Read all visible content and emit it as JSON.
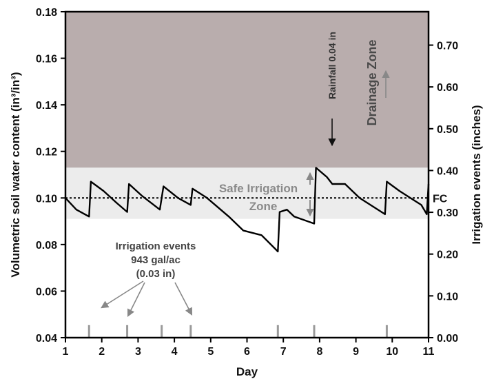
{
  "chart_data": {
    "type": "line",
    "xlabel": "Day",
    "ylabel_left": "Volumetric soil water content (in³/in³)",
    "ylabel_right": "Irrigation events (inches)",
    "xlim": [
      1,
      11
    ],
    "ylim_left": [
      0.04,
      0.18
    ],
    "ylim_right": [
      0.0,
      0.78
    ],
    "x_ticks": [
      "1",
      "2",
      "3",
      "4",
      "5",
      "6",
      "7",
      "8",
      "9",
      "10",
      "11"
    ],
    "y_left_ticks": [
      "0.04",
      "0.06",
      "0.08",
      "0.10",
      "0.12",
      "0.14",
      "0.16",
      "0.18"
    ],
    "y_right_ticks": [
      "0.00",
      "0.10",
      "0.20",
      "0.30",
      "0.40",
      "0.50",
      "0.60",
      "0.70"
    ],
    "zones": {
      "drainage": {
        "label": "Drainage Zone",
        "from": 0.113,
        "to": 0.18,
        "color": "#b9adad"
      },
      "safe_irrigation": {
        "label_line1": "Safe Irrigation",
        "label_line2": "Zone",
        "from": 0.091,
        "to": 0.113,
        "color": "#ececec"
      }
    },
    "field_capacity": {
      "label": "FC",
      "value": 0.1
    },
    "series": [
      {
        "values": [
          [
            1.0,
            0.1
          ],
          [
            1.3,
            0.095
          ],
          [
            1.65,
            0.092
          ],
          [
            1.7,
            0.107
          ],
          [
            2.05,
            0.103
          ],
          [
            2.4,
            0.098
          ],
          [
            2.7,
            0.094
          ],
          [
            2.75,
            0.106
          ],
          [
            3.1,
            0.101
          ],
          [
            3.6,
            0.095
          ],
          [
            3.7,
            0.105
          ],
          [
            4.1,
            0.1
          ],
          [
            4.45,
            0.097
          ],
          [
            4.5,
            0.104
          ],
          [
            4.9,
            0.1
          ],
          [
            5.5,
            0.092
          ],
          [
            5.9,
            0.086
          ],
          [
            6.4,
            0.084
          ],
          [
            6.85,
            0.077
          ],
          [
            6.9,
            0.094
          ],
          [
            7.1,
            0.095
          ],
          [
            7.3,
            0.092
          ],
          [
            7.85,
            0.089
          ],
          [
            7.9,
            0.113
          ],
          [
            8.2,
            0.109
          ],
          [
            8.35,
            0.106
          ],
          [
            8.7,
            0.106
          ],
          [
            9.1,
            0.1
          ],
          [
            9.8,
            0.093
          ],
          [
            9.85,
            0.107
          ],
          [
            10.2,
            0.103
          ],
          [
            10.5,
            0.1
          ],
          [
            10.8,
            0.097
          ],
          [
            10.95,
            0.093
          ],
          [
            11.0,
            0.106
          ]
        ]
      }
    ],
    "irrigation_events": [
      {
        "day": 1.65,
        "inches": 0.03
      },
      {
        "day": 2.7,
        "inches": 0.03
      },
      {
        "day": 3.65,
        "inches": 0.03
      },
      {
        "day": 4.45,
        "inches": 0.03
      },
      {
        "day": 6.85,
        "inches": 0.03
      },
      {
        "day": 7.85,
        "inches": 0.03
      },
      {
        "day": 9.85,
        "inches": 0.03
      }
    ],
    "annotations": {
      "irrigation_line1": "Irrigation events",
      "irrigation_line2": "943 gal/ac",
      "irrigation_line3": "(0.03 in)",
      "rainfall": "Rainfall 0.04 in"
    },
    "colors": {
      "line": "#000000",
      "event_bar": "#9a9a9a",
      "arrow": "#888888"
    }
  }
}
